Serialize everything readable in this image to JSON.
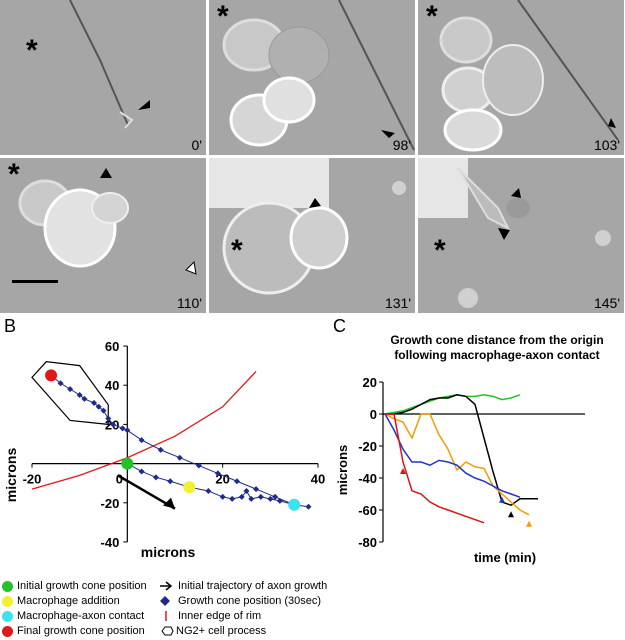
{
  "panel_a": {
    "letter": "A",
    "frames": [
      {
        "time": "0'"
      },
      {
        "time": "98'"
      },
      {
        "time": "103'"
      },
      {
        "time": "110'"
      },
      {
        "time": "131'"
      },
      {
        "time": "145'"
      }
    ],
    "star": "*"
  },
  "panel_b": {
    "letter": "B",
    "ylabel": "microns",
    "xlabel": "microns"
  },
  "panel_c": {
    "letter": "C",
    "title_line1": "Growth cone distance from the origin",
    "title_line2": "following macrophage-axon contact",
    "ylabel": "microns",
    "xlabel": "time (min)"
  },
  "legend": {
    "initial": "Initial growth cone position",
    "macrophage": "Macrophage addition",
    "contact": "Macrophage-axon contact",
    "final": "Final growth cone position",
    "trajectory": "Initial trajectory of axon growth",
    "gc_position": "Growth cone position (30sec)",
    "rim": "Inner edge of rim",
    "ng2": "NG2+ cell process"
  },
  "chart_data": [
    {
      "type": "scatter",
      "title": "",
      "xlabel": "microns",
      "ylabel": "microns",
      "xlim": [
        -20,
        40
      ],
      "ylim": [
        -40,
        60
      ],
      "xticks": [
        -20,
        0,
        20,
        40
      ],
      "yticks": [
        -40,
        -20,
        0,
        20,
        40,
        60
      ],
      "markers": {
        "initial": [
          0,
          0
        ],
        "macrophage": [
          13,
          -12
        ],
        "contact": [
          35,
          -21
        ],
        "final": [
          -16,
          45
        ]
      },
      "gc_track": [
        [
          -16,
          45
        ],
        [
          -14,
          41
        ],
        [
          -12,
          38
        ],
        [
          -10,
          35
        ],
        [
          -9,
          33
        ],
        [
          -7,
          31
        ],
        [
          -6,
          29
        ],
        [
          -5,
          27
        ],
        [
          -4,
          23
        ],
        [
          -3,
          20
        ],
        [
          -1,
          18
        ],
        [
          0,
          17
        ],
        [
          3,
          12
        ],
        [
          7,
          7
        ],
        [
          11,
          3
        ],
        [
          15,
          -1
        ],
        [
          19,
          -5
        ],
        [
          23,
          -9
        ],
        [
          27,
          -13
        ],
        [
          31,
          -17
        ],
        [
          35,
          -21
        ]
      ],
      "gc_track2": [
        [
          0,
          0
        ],
        [
          3,
          -4
        ],
        [
          6,
          -7
        ],
        [
          9,
          -9
        ],
        [
          13,
          -12
        ],
        [
          17,
          -14
        ],
        [
          20,
          -17
        ],
        [
          22,
          -18
        ],
        [
          24,
          -17
        ],
        [
          25,
          -14
        ],
        [
          26,
          -18
        ],
        [
          28,
          -17
        ],
        [
          30,
          -18
        ],
        [
          32,
          -19
        ],
        [
          35,
          -21
        ],
        [
          38,
          -22
        ]
      ],
      "rim": [
        [
          -20,
          -13
        ],
        [
          -10,
          -6
        ],
        [
          0,
          3
        ],
        [
          10,
          14
        ],
        [
          20,
          29
        ],
        [
          27,
          47
        ]
      ]
    },
    {
      "type": "line",
      "title": "Growth cone distance from the origin following macrophage-axon contact",
      "xlabel": "time (min)",
      "ylabel": "microns",
      "ylim": [
        -80,
        20
      ],
      "yticks": [
        -80,
        -60,
        -40,
        -20,
        0,
        20
      ],
      "series": [
        {
          "color": "#22c22a",
          "values": [
            0,
            1,
            2,
            4,
            6,
            8,
            10,
            11,
            12,
            11,
            11,
            12,
            11,
            9,
            10,
            12
          ]
        },
        {
          "color": "#000000",
          "values": [
            0,
            0,
            1,
            3,
            6,
            9,
            10,
            10,
            12,
            11,
            6,
            -15,
            -36,
            -55,
            -57,
            -53,
            -53,
            -53
          ]
        },
        {
          "color": "#f59c00",
          "values": [
            0,
            -3,
            -5,
            -15,
            0,
            0,
            -13,
            -22,
            -35,
            -30,
            -33,
            -34,
            -45,
            -50,
            -55,
            -60,
            -63
          ]
        },
        {
          "color": "#2233cc",
          "values": [
            0,
            -10,
            -22,
            -30,
            -30,
            -32,
            -29,
            -30,
            -32,
            -37,
            -40,
            -42,
            -45,
            -48,
            -50,
            -52
          ]
        },
        {
          "color": "#dd1111",
          "values": [
            0,
            0,
            -30,
            -48,
            -50,
            -55,
            -58,
            -60,
            -62,
            -64,
            -66,
            -68
          ]
        }
      ]
    }
  ]
}
